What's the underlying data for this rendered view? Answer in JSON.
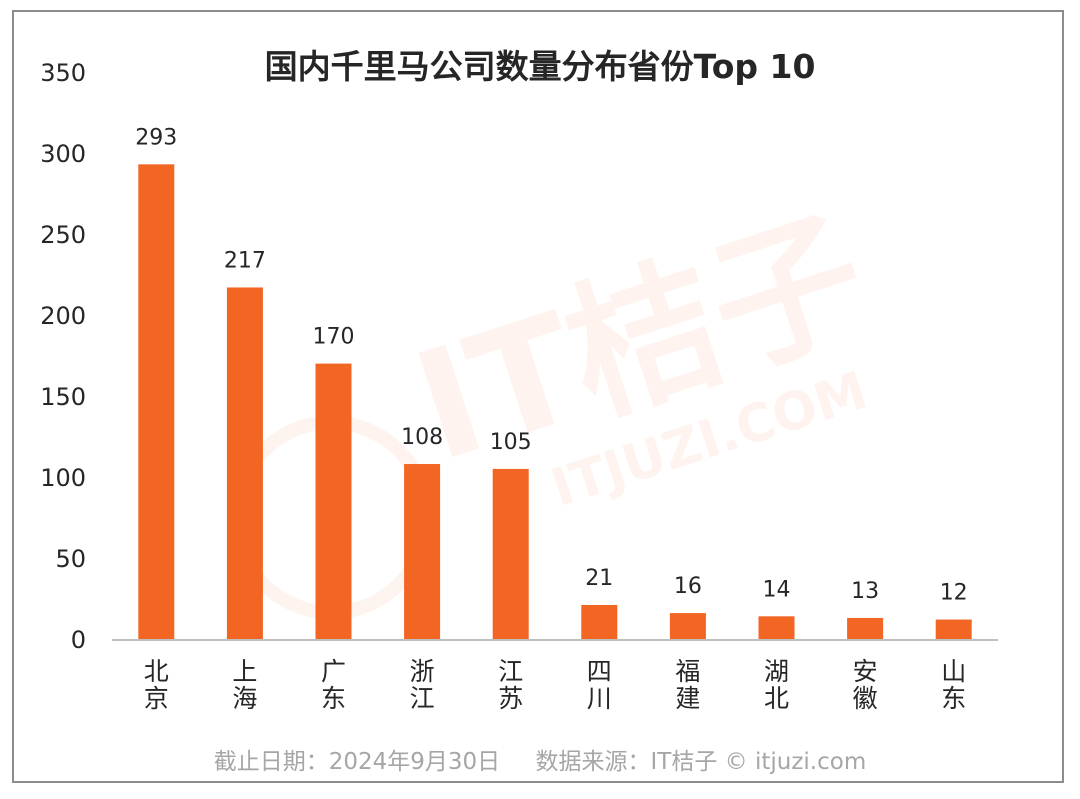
{
  "chart_data": {
    "type": "bar",
    "title": "国内千里马公司数量分布省份Top 10",
    "categories": [
      "北京",
      "上海",
      "广东",
      "浙江",
      "江苏",
      "四川",
      "福建",
      "湖北",
      "安徽",
      "山东"
    ],
    "values": [
      293,
      217,
      170,
      108,
      105,
      21,
      16,
      14,
      13,
      12
    ],
    "ylim": [
      0,
      350
    ],
    "yticks": [
      0,
      50,
      100,
      150,
      200,
      250,
      300,
      350
    ],
    "xlabel": "",
    "ylabel": "",
    "grid": false,
    "bar_color": "#f26522",
    "data_labels": true
  },
  "footer": {
    "date": "截止日期：2024年9月30日",
    "source": "数据来源：IT桔子 © itjuzi.com"
  },
  "watermark": {
    "brand": "IT桔子",
    "url": "ITJUZI.COM"
  }
}
